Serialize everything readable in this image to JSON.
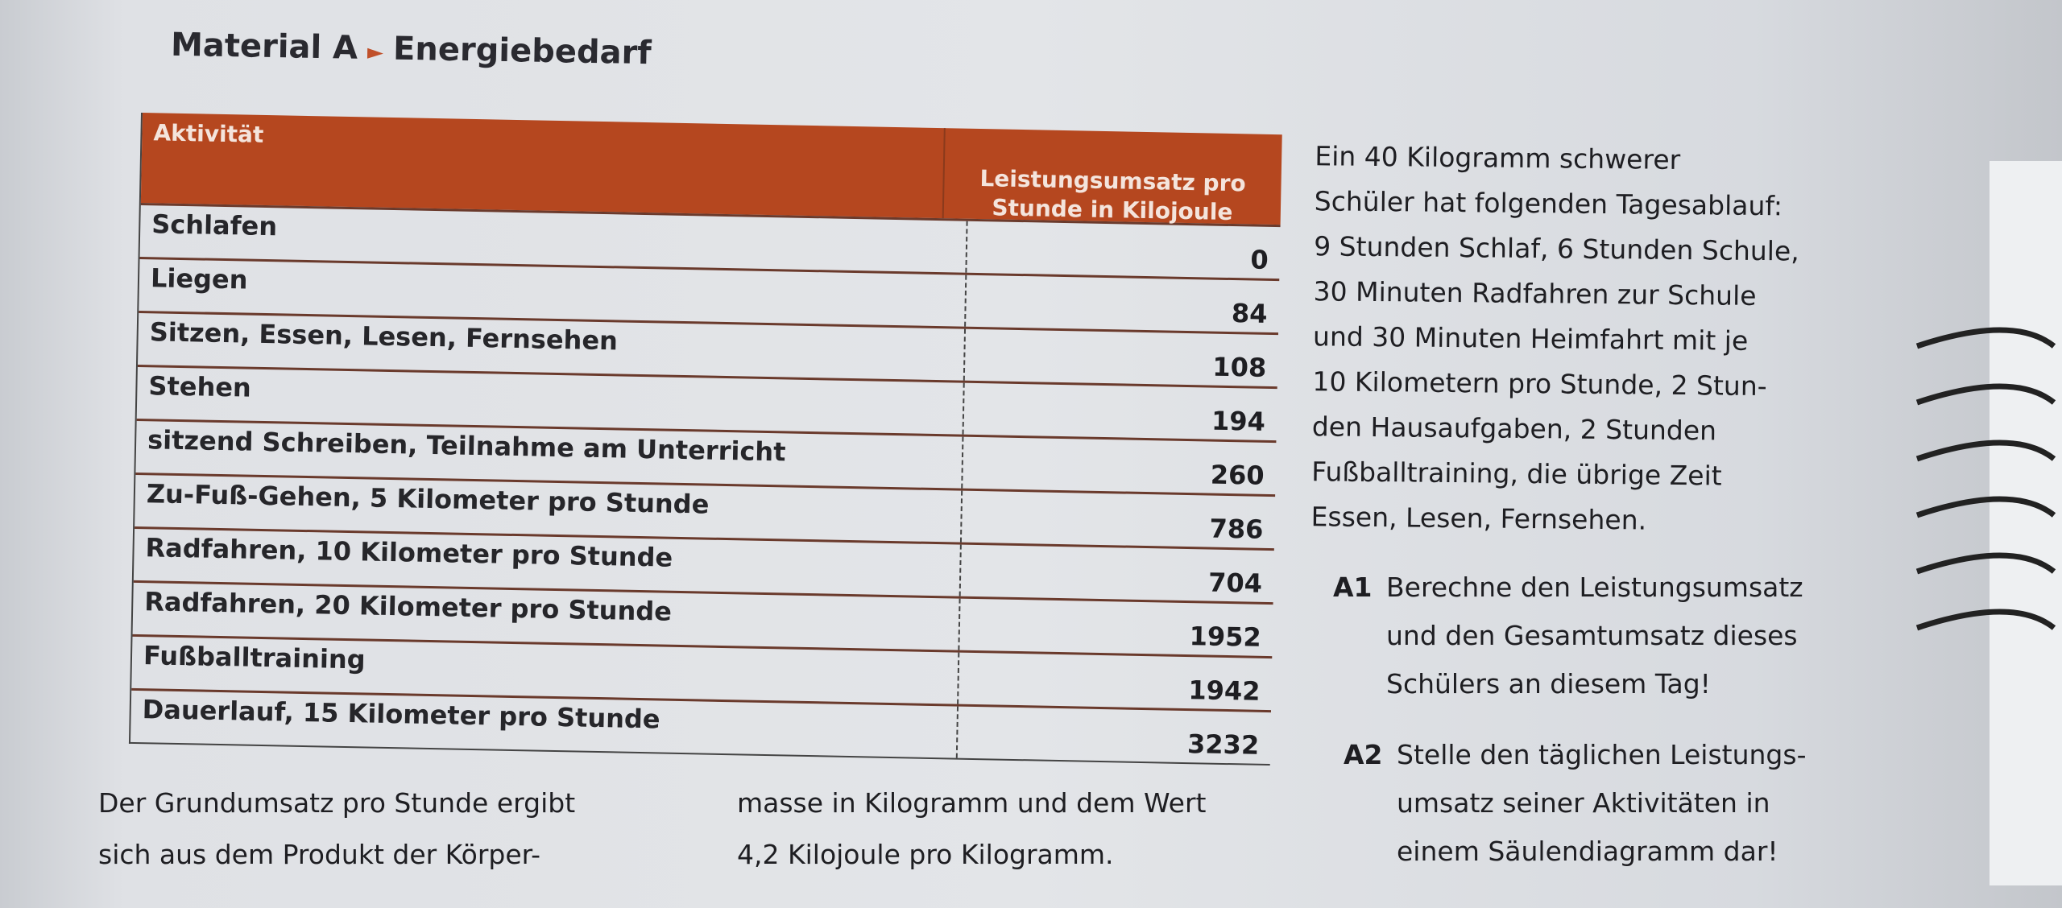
{
  "header": {
    "material": "Material A",
    "topic": "Energiebedarf"
  },
  "table": {
    "col_activity": "Aktivität",
    "col_value": "Leistungsumsatz pro Stunde in Kilojoule",
    "rows": [
      {
        "activity": "Schlafen",
        "value": "0"
      },
      {
        "activity": "Liegen",
        "value": "84"
      },
      {
        "activity": "Sitzen, Essen, Lesen, Fernsehen",
        "value": "108"
      },
      {
        "activity": "Stehen",
        "value": "194"
      },
      {
        "activity": "sitzend Schreiben, Teilnahme am Unterricht",
        "value": "260"
      },
      {
        "activity": "Zu-Fuß-Gehen, 5 Kilometer pro Stunde",
        "value": "786"
      },
      {
        "activity": "Radfahren, 10 Kilometer pro Stunde",
        "value": "704"
      },
      {
        "activity": "Radfahren, 20 Kilometer pro Stunde",
        "value": "1952"
      },
      {
        "activity": "Fußballtraining",
        "value": "1942"
      },
      {
        "activity": "Dauerlauf, 15 Kilometer pro Stunde",
        "value": "3232"
      }
    ]
  },
  "scenario": [
    "Ein 40 Kilogramm schwerer",
    "Schüler hat folgenden Tagesablauf:",
    "9 Stunden Schlaf, 6 Stunden Schule,",
    "30 Minuten Radfahren zur Schule",
    "und 30 Minuten Heimfahrt mit je",
    "10 Kilometern pro Stunde, 2 Stun-",
    "den Hausaufgaben, 2 Stunden",
    "Fußballtraining, die übrige Zeit",
    "Essen, Lesen, Fernsehen."
  ],
  "tasks": [
    {
      "label": "A1",
      "lines": [
        "Berechne den Leistungsumsatz",
        "und den Gesamtumsatz dieses",
        "Schülers an diesem Tag!"
      ]
    },
    {
      "label": "A2",
      "lines": [
        "Stelle den täglichen Leistungs-",
        "umsatz seiner Aktivitäten in",
        "einem Säulendiagramm dar!"
      ]
    }
  ],
  "footnote": {
    "col1": [
      "Der Grundumsatz pro Stunde ergibt",
      "sich aus dem Produkt der Körper-"
    ],
    "col2": [
      "masse in Kilogramm und dem Wert",
      "4,2 Kilojoule pro Kilogramm."
    ]
  },
  "colors": {
    "header_bg": "#b5471f",
    "accent": "#c0502a"
  }
}
